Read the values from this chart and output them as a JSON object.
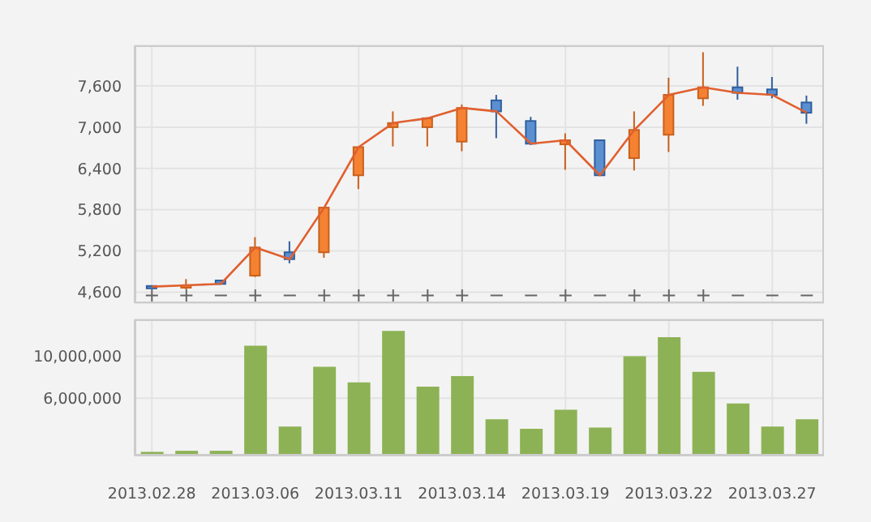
{
  "chart_data": [
    {
      "type": "candlestick",
      "categories": [
        "2013.02.28",
        null,
        null,
        "2013.03.06",
        null,
        null,
        "2013.03.11",
        null,
        null,
        "2013.03.14",
        null,
        null,
        "2013.03.19",
        null,
        null,
        "2013.03.22",
        null,
        null,
        "2013.03.27",
        null
      ],
      "ohlc": [
        [
          4690,
          4700,
          4660,
          4680
        ],
        [
          4690,
          4790,
          4640,
          4700
        ],
        [
          4770,
          4780,
          4710,
          4720
        ],
        [
          4840,
          5400,
          4820,
          5250
        ],
        [
          5180,
          5340,
          5020,
          5080
        ],
        [
          5180,
          5830,
          5100,
          5830
        ],
        [
          6300,
          6710,
          6100,
          6710
        ],
        [
          7000,
          7230,
          6720,
          7060
        ],
        [
          7000,
          7140,
          6720,
          7130
        ],
        [
          6790,
          7330,
          6650,
          7280
        ],
        [
          7390,
          7470,
          6840,
          7230
        ],
        [
          7090,
          7150,
          6740,
          6760
        ],
        [
          6750,
          6910,
          6380,
          6810
        ],
        [
          6810,
          6810,
          6300,
          6300
        ],
        [
          6550,
          7230,
          6370,
          6960
        ],
        [
          6890,
          7720,
          6640,
          7470
        ],
        [
          7420,
          8090,
          7310,
          7580
        ],
        [
          7580,
          7880,
          7400,
          7500
        ],
        [
          7550,
          7730,
          7420,
          7470
        ],
        [
          7360,
          7460,
          7050,
          7210
        ]
      ],
      "colors": [
        "#5b8fd0",
        "#f58232",
        "#5b8fd0",
        "#f58232",
        "#5b8fd0",
        "#f58232",
        "#f58232",
        "#f58232",
        "#f58232",
        "#f58232",
        "#5b8fd0",
        "#5b8fd0",
        "#f58232",
        "#5b8fd0",
        "#f58232",
        "#f58232",
        "#f58232",
        "#5b8fd0",
        "#5b8fd0",
        "#5b8fd0"
      ],
      "series": [
        {
          "type": "line",
          "color": "#e0602f",
          "values": [
            4680,
            4700,
            4720,
            5250,
            5080,
            5830,
            6710,
            7060,
            7130,
            7280,
            7230,
            6760,
            6810,
            6300,
            6960,
            7470,
            7580,
            7500,
            7470,
            7210
          ]
        }
      ],
      "ylim": [
        4440,
        8190
      ],
      "yticks": [
        {
          "value": 4600,
          "label": "4,600"
        },
        {
          "value": 5200,
          "label": "5,200"
        },
        {
          "value": 5800,
          "label": "5,800"
        },
        {
          "value": 6400,
          "label": "6,400"
        },
        {
          "value": 7000,
          "label": "7,000"
        },
        {
          "value": 7600,
          "label": "7,600"
        }
      ],
      "grid": true,
      "tick_labels": "y",
      "annotations": [
        "+",
        "+",
        "−",
        "+",
        "−",
        "+",
        "+",
        "+",
        "+",
        "+",
        "−",
        "−",
        "+",
        "−",
        "+",
        "+",
        "+",
        "−",
        "−",
        "−"
      ]
    },
    {
      "type": "bar",
      "categories": [
        "2013.02.28",
        null,
        null,
        "2013.03.06",
        null,
        null,
        "2013.03.11",
        null,
        null,
        "2013.03.14",
        null,
        null,
        "2013.03.19",
        null,
        null,
        "2013.03.22",
        null,
        null,
        "2013.03.27",
        null
      ],
      "values": [
        900000,
        1000000,
        1000000,
        11000000,
        3300000,
        9000000,
        7500000,
        12400000,
        7100000,
        8100000,
        4000000,
        3100000,
        4900000,
        3200000,
        10000000,
        11800000,
        8500000,
        5500000,
        3300000,
        4000000
      ],
      "color": "#8db255",
      "ylim": [
        550000,
        13500000
      ],
      "yticks": [
        {
          "value": 6000000,
          "label": "6,000,000"
        },
        {
          "value": 10000000,
          "label": "10,000,000"
        }
      ],
      "grid": true
    }
  ]
}
